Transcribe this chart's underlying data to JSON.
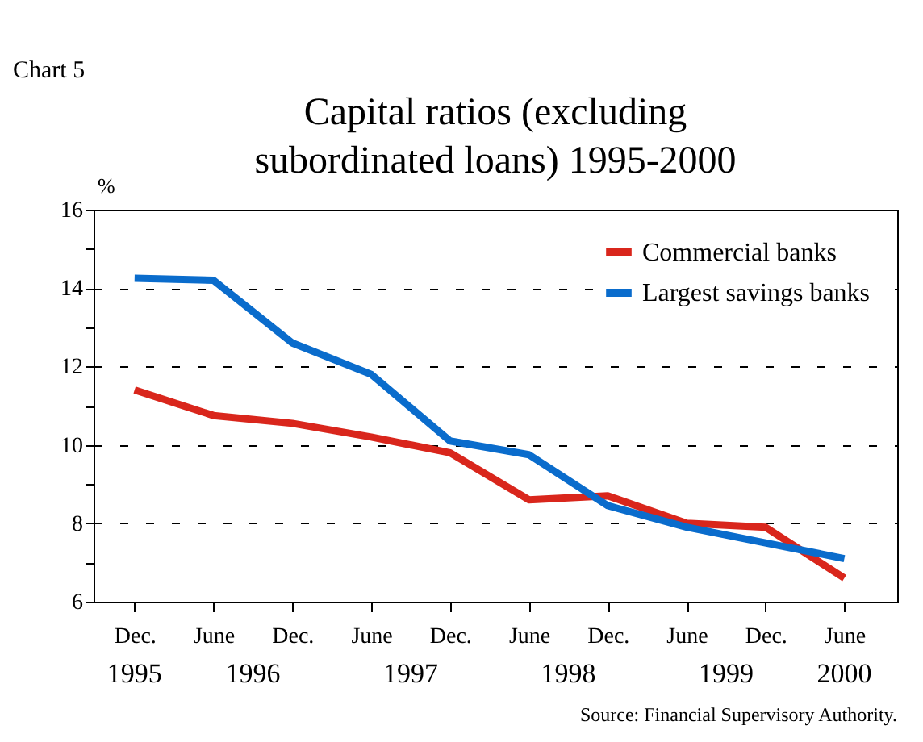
{
  "chart_data": {
    "type": "line",
    "title": "Capital ratios (excluding\nsubordinated loans) 1995-2000",
    "ylabel": "%",
    "categories": [
      "Dec.",
      "June",
      "Dec.",
      "June",
      "Dec.",
      "June",
      "Dec.",
      "June",
      "Dec.",
      "June"
    ],
    "series": [
      {
        "name": "Commercial banks",
        "color": "#d9261c",
        "values": [
          11.4,
          10.75,
          10.55,
          10.2,
          9.8,
          8.6,
          8.7,
          8.0,
          7.9,
          6.6
        ]
      },
      {
        "name": "Largest savings banks",
        "color": "#0a6ccc",
        "values": [
          14.25,
          14.2,
          12.6,
          11.8,
          10.1,
          9.75,
          8.45,
          7.9,
          7.5,
          7.1
        ]
      }
    ],
    "ylim": [
      6,
      16
    ],
    "yticks": [
      6,
      {
        "value": 7,
        "label": null
      },
      8,
      {
        "value": 9,
        "label": null
      },
      10,
      {
        "value": 11,
        "label": null
      },
      12,
      {
        "value": 13,
        "label": null
      },
      14,
      {
        "value": 15,
        "label": null
      },
      16
    ],
    "grid": "y",
    "legend": "top right",
    "marker": "none",
    "line_style": "solid",
    "annotations": [
      "Chart 5",
      "1995",
      "1996",
      "1997",
      "1998",
      "1999",
      "2000",
      "Source: Financial Supervisory Authority."
    ]
  }
}
